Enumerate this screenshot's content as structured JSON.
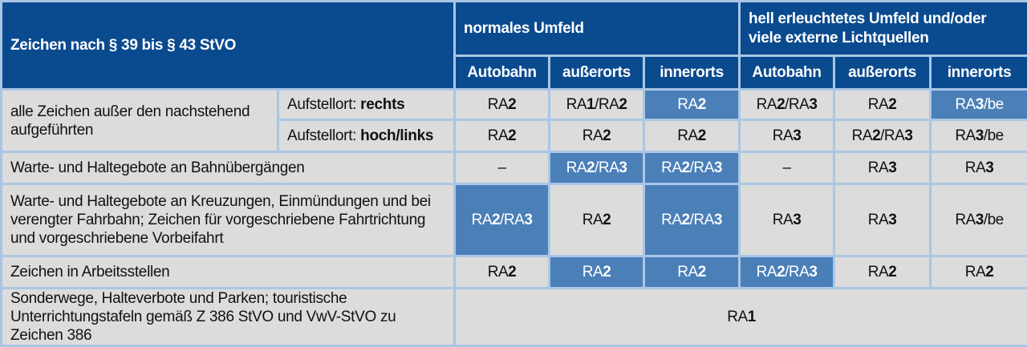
{
  "header": {
    "main": "Zeichen nach § 39 bis § 43 StVO",
    "group1": "normales Umfeld",
    "group2": "hell erleuchtetes Umfeld und/oder viele externe Lichtquellen",
    "cols": [
      "Autobahn",
      "außerorts",
      "innerorts",
      "Autobahn",
      "außerorts",
      "innerorts"
    ]
  },
  "colors": {
    "header": "#0a4a8f",
    "highlight": "#4a7fb8",
    "cell": "#dcdcdc",
    "border": "#a9c6e4"
  },
  "rows": [
    {
      "label": "alle Zeichen außer den nachstehend aufgeführten",
      "sub": [
        {
          "prefix": "Aufstellort: ",
          "bold": "rechts",
          "cells": [
            "RA2",
            "RA1/RA2",
            "RA2",
            "RA2/RA3",
            "RA2",
            "RA3/be"
          ],
          "highlight": [
            false,
            false,
            true,
            false,
            false,
            true
          ]
        },
        {
          "prefix": "Aufstellort: ",
          "bold": "hoch/links",
          "cells": [
            "RA2",
            "RA2",
            "RA2",
            "RA3",
            "RA2/RA3",
            "RA3/be"
          ],
          "highlight": [
            false,
            false,
            false,
            false,
            false,
            false
          ]
        }
      ]
    },
    {
      "label": "Warte- und Haltegebote an Bahnübergängen",
      "cells": [
        "–",
        "RA2/RA3",
        "RA2/RA3",
        "–",
        "RA3",
        "RA3"
      ],
      "highlight": [
        false,
        true,
        true,
        false,
        false,
        false
      ]
    },
    {
      "label": "Warte- und Haltegebote an Kreuzungen, Einmündungen und bei verengter Fahrbahn; Zeichen für vorgeschriebene Fahrtrichtung und vorgeschriebene Vorbeifahrt",
      "cells": [
        "RA2/RA3",
        "RA2",
        "RA2/RA3",
        "RA3",
        "RA3",
        "RA3/be"
      ],
      "highlight": [
        true,
        false,
        true,
        false,
        false,
        false
      ]
    },
    {
      "label": "Zeichen in Arbeitsstellen",
      "cells": [
        "RA2",
        "RA2",
        "RA2",
        "RA2/RA3",
        "RA2",
        "RA2"
      ],
      "highlight": [
        false,
        true,
        true,
        true,
        false,
        false
      ]
    },
    {
      "label": "Sonderwege, Halteverbote und Parken; touristische Unterrichtungstafeln gemäß Z 386 StVO und VwV-StVO zu Zeichen 386",
      "span_value": "RA1"
    }
  ]
}
